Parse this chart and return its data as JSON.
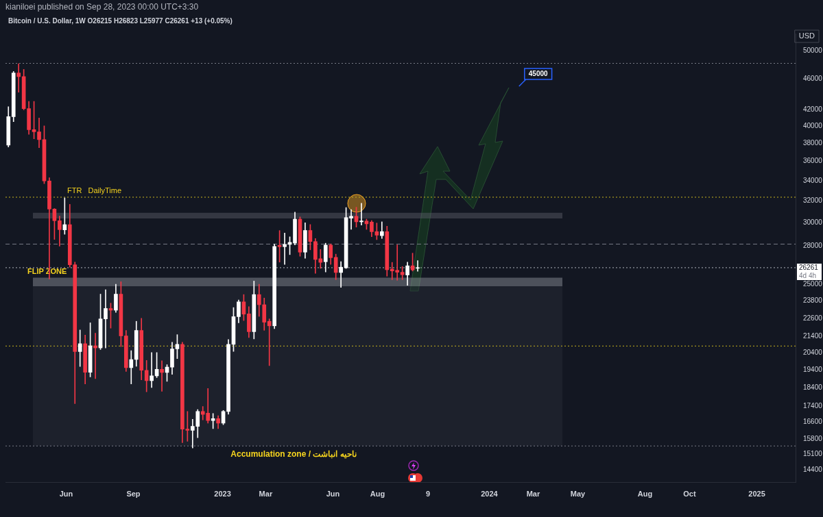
{
  "chart_data": {
    "type": "candlestick",
    "title": "Bitcoin / U.S. Dollar, 1W  O26215  H26823  L25977  C26261  +13 (+0.05%)",
    "subtitle": "kianiloei published on Sep 28, 2023 00:00 UTC+3:30",
    "x": [
      "2022-03-14",
      "2022-03-21",
      "2022-03-28",
      "2022-04-04",
      "2022-04-11",
      "2022-04-18",
      "2022-04-25",
      "2022-05-02",
      "2022-05-09",
      "2022-05-16",
      "2022-05-23",
      "2022-05-30",
      "2022-06-06",
      "2022-06-13",
      "2022-06-20",
      "2022-06-27",
      "2022-07-04",
      "2022-07-11",
      "2022-07-18",
      "2022-07-25",
      "2022-08-01",
      "2022-08-08",
      "2022-08-15",
      "2022-08-22",
      "2022-08-29",
      "2022-09-05",
      "2022-09-12",
      "2022-09-19",
      "2022-09-26",
      "2022-10-03",
      "2022-10-10",
      "2022-10-17",
      "2022-10-24",
      "2022-10-31",
      "2022-11-07",
      "2022-11-14",
      "2022-11-21",
      "2022-11-28",
      "2022-12-05",
      "2022-12-12",
      "2022-12-19",
      "2022-12-26",
      "2023-01-02",
      "2023-01-09",
      "2023-01-16",
      "2023-01-23",
      "2023-01-30",
      "2023-02-06",
      "2023-02-13",
      "2023-02-20",
      "2023-02-27",
      "2023-03-06",
      "2023-03-13",
      "2023-03-20",
      "2023-03-27",
      "2023-04-03",
      "2023-04-10",
      "2023-04-17",
      "2023-04-24",
      "2023-05-01",
      "2023-05-08",
      "2023-05-15",
      "2023-05-22",
      "2023-05-29",
      "2023-06-05",
      "2023-06-12",
      "2023-06-19",
      "2023-06-26",
      "2023-07-03",
      "2023-07-10",
      "2023-07-17",
      "2023-07-24",
      "2023-07-31",
      "2023-08-07",
      "2023-08-14",
      "2023-08-21",
      "2023-08-28",
      "2023-09-04",
      "2023-09-11",
      "2023-09-18",
      "2023-09-25"
    ],
    "ohlc": [
      [
        37780,
        42330,
        37560,
        41100
      ],
      [
        41100,
        47000,
        40500,
        46800
      ],
      [
        46800,
        48100,
        44200,
        46300
      ],
      [
        46300,
        47300,
        41950,
        42100
      ],
      [
        42100,
        43000,
        39000,
        39550
      ],
      [
        39550,
        43000,
        38500,
        39300
      ],
      [
        39300,
        40950,
        37500,
        38400
      ],
      [
        38400,
        40000,
        33700,
        33970
      ],
      [
        33970,
        34300,
        25400,
        31250
      ],
      [
        31250,
        31300,
        28560,
        30190
      ],
      [
        30190,
        30600,
        28000,
        29400
      ],
      [
        29380,
        32300,
        29000,
        29840
      ],
      [
        29840,
        31690,
        26300,
        26490
      ],
      [
        26490,
        26700,
        17550,
        20480
      ],
      [
        20480,
        21830,
        19590,
        20960
      ],
      [
        20960,
        21500,
        18600,
        19260
      ],
      [
        19260,
        22300,
        18990,
        20830
      ],
      [
        20830,
        21620,
        18900,
        20700
      ],
      [
        20700,
        24280,
        20600,
        22560
      ],
      [
        22560,
        24600,
        20700,
        23270
      ],
      [
        23270,
        23640,
        21950,
        23150
      ],
      [
        23150,
        25000,
        23000,
        24280
      ],
      [
        24280,
        25190,
        20780,
        21450
      ],
      [
        21450,
        21800,
        19300,
        19520
      ],
      [
        19520,
        20530,
        18600,
        20000
      ],
      [
        20000,
        22400,
        19600,
        21800
      ],
      [
        21800,
        22600,
        18830,
        19370
      ],
      [
        19370,
        19950,
        18170,
        18780
      ],
      [
        18780,
        20420,
        18400,
        19050
      ],
      [
        19050,
        20420,
        18950,
        19430
      ],
      [
        19430,
        19930,
        18200,
        19250
      ],
      [
        19250,
        19690,
        18740,
        19550
      ],
      [
        19550,
        21050,
        19140,
        20640
      ],
      [
        20640,
        21530,
        20050,
        20920
      ],
      [
        20920,
        21050,
        15630,
        16270
      ],
      [
        16270,
        17140,
        15690,
        16210
      ],
      [
        16210,
        16750,
        15380,
        16400
      ],
      [
        16400,
        17240,
        15860,
        17140
      ],
      [
        17140,
        17400,
        16720,
        16990
      ],
      [
        17060,
        18350,
        16560,
        16690
      ],
      [
        16690,
        17040,
        16290,
        16780
      ],
      [
        16780,
        16930,
        16290,
        16560
      ],
      [
        16560,
        17200,
        16480,
        17140
      ],
      [
        17140,
        21220,
        17000,
        20920
      ],
      [
        20920,
        23330,
        20490,
        22710
      ],
      [
        22710,
        23860,
        22300,
        23730
      ],
      [
        23730,
        24250,
        22450,
        22880
      ],
      [
        22900,
        23400,
        21350,
        21720
      ],
      [
        21720,
        25240,
        21260,
        24250
      ],
      [
        24250,
        25000,
        22730,
        23530
      ],
      [
        23530,
        24000,
        21810,
        22340
      ],
      [
        22400,
        22560,
        19640,
        22100
      ],
      [
        22100,
        28180,
        21920,
        27970
      ],
      [
        28060,
        29320,
        26700,
        27950
      ],
      [
        27950,
        29110,
        26520,
        28140
      ],
      [
        28140,
        28780,
        27300,
        28310
      ],
      [
        28250,
        30960,
        28100,
        30330
      ],
      [
        30330,
        30530,
        27170,
        27500
      ],
      [
        27500,
        30010,
        27010,
        29330
      ],
      [
        29330,
        29850,
        27690,
        28380
      ],
      [
        28380,
        28640,
        25830,
        26910
      ],
      [
        26970,
        27720,
        26210,
        26680
      ],
      [
        26730,
        28240,
        25930,
        28080
      ],
      [
        28080,
        28180,
        26520,
        27050
      ],
      [
        27080,
        27340,
        25350,
        25890
      ],
      [
        25890,
        26740,
        24770,
        26300
      ],
      [
        26250,
        31390,
        26200,
        30470
      ],
      [
        30420,
        31200,
        29420,
        30590
      ],
      [
        30590,
        31420,
        29620,
        30090
      ],
      [
        30090,
        31790,
        29800,
        30170
      ],
      [
        30160,
        30330,
        29420,
        29910
      ],
      [
        30070,
        30200,
        28790,
        29220
      ],
      [
        29230,
        29980,
        28540,
        28920
      ],
      [
        28880,
        30090,
        28640,
        29230
      ],
      [
        29230,
        29700,
        25610,
        26100
      ],
      [
        26150,
        26680,
        25340,
        26010
      ],
      [
        26060,
        28100,
        25300,
        25910
      ],
      [
        25910,
        26350,
        25340,
        25720
      ],
      [
        25700,
        26690,
        24920,
        26410
      ],
      [
        26410,
        27420,
        26000,
        26090
      ],
      [
        26215,
        26823,
        25977,
        26261
      ]
    ],
    "colors": [
      "#ffffff",
      "#ffffff",
      "#f23645",
      "#f23645",
      "#f23645",
      "#f23645",
      "#f23645",
      "#f23645",
      "#f23645",
      "#f23645",
      "#f23645",
      "#ffffff",
      "#f23645",
      "#f23645",
      "#ffffff",
      "#f23645",
      "#ffffff",
      "#f23645",
      "#ffffff",
      "#ffffff",
      "#f23645",
      "#ffffff",
      "#f23645",
      "#f23645",
      "#ffffff",
      "#ffffff",
      "#f23645",
      "#f23645",
      "#ffffff",
      "#ffffff",
      "#f23645",
      "#ffffff",
      "#ffffff",
      "#ffffff",
      "#f23645",
      "#f23645",
      "#ffffff",
      "#ffffff",
      "#f23645",
      "#f23645",
      "#ffffff",
      "#f23645",
      "#ffffff",
      "#ffffff",
      "#ffffff",
      "#ffffff",
      "#f23645",
      "#f23645",
      "#ffffff",
      "#f23645",
      "#f23645",
      "#f23645",
      "#ffffff",
      "#f23645",
      "#ffffff",
      "#ffffff",
      "#ffffff",
      "#f23645",
      "#ffffff",
      "#f23645",
      "#f23645",
      "#f23645",
      "#ffffff",
      "#f23645",
      "#f23645",
      "#ffffff",
      "#ffffff",
      "#ffffff",
      "#f23645",
      "#ffffff",
      "#f23645",
      "#f23645",
      "#f23645",
      "#ffffff",
      "#f23645",
      "#f23645",
      "#f23645",
      "#f23645",
      "#ffffff",
      "#f23645",
      "#ffffff"
    ],
    "xlim": [
      "2022-03-10",
      "2025-02-23"
    ],
    "xticks": [
      {
        "value": "2022-06-01",
        "label": "Jun"
      },
      {
        "value": "2022-09-01",
        "label": "Sep"
      },
      {
        "value": "2023-01-01",
        "label": "2023"
      },
      {
        "value": "2023-03-01",
        "label": "Mar"
      },
      {
        "value": "2023-06-01",
        "label": "Jun"
      },
      {
        "value": "2023-08-01",
        "label": "Aug"
      },
      {
        "value": "2023-10-09",
        "label": "9"
      },
      {
        "value": "2024-01-01",
        "label": "2024"
      },
      {
        "value": "2024-03-01",
        "label": "Mar"
      },
      {
        "value": "2024-05-01",
        "label": "May"
      },
      {
        "value": "2024-08-01",
        "label": "Aug"
      },
      {
        "value": "2024-10-01",
        "label": "Oct"
      },
      {
        "value": "2025-01-01",
        "label": "2025"
      }
    ],
    "ylim": [
      13880,
      52600
    ],
    "yticks": [
      14400,
      15100,
      15800,
      16600,
      17400,
      18400,
      19400,
      20400,
      21400,
      22600,
      23800,
      25000,
      28000,
      30000,
      32000,
      34000,
      36000,
      38000,
      40000,
      42000,
      46000,
      50000
    ],
    "log": true,
    "ref_lines": [
      {
        "axis": "y",
        "value": 48150,
        "color": "#787b86",
        "line_style": "dotted"
      },
      {
        "axis": "y",
        "value": 15475,
        "color": "#787b86",
        "line_style": "dotted"
      },
      {
        "axis": "y",
        "value": 32370,
        "label": "FTR   DailyTime",
        "color": "#c9b51f",
        "line_style": "dotted"
      },
      {
        "axis": "y",
        "value": 20816,
        "color": "#c9b51f",
        "line_style": "dotted"
      },
      {
        "axis": "y",
        "value": 28165,
        "color": "#787b86",
        "line_style": "dashed"
      },
      {
        "axis": "y",
        "value": 26261,
        "color": "#b2b5be",
        "line_style": "dotted"
      }
    ],
    "bands": [
      {
        "axis": "y",
        "from": 30390,
        "to": 30900,
        "color": "#5d606b"
      },
      {
        "axis": "y",
        "from": 24850,
        "to": 25500,
        "label": "FLIP ZONE",
        "color": "#9598a1"
      },
      {
        "axis": "y",
        "from": 15475,
        "to": 24850,
        "label": "Accumulation zone / ناحیه انباشت",
        "color": "#2a2e39"
      }
    ],
    "annotations": [
      "USD",
      "45000",
      "26261",
      "4d 4h"
    ]
  }
}
